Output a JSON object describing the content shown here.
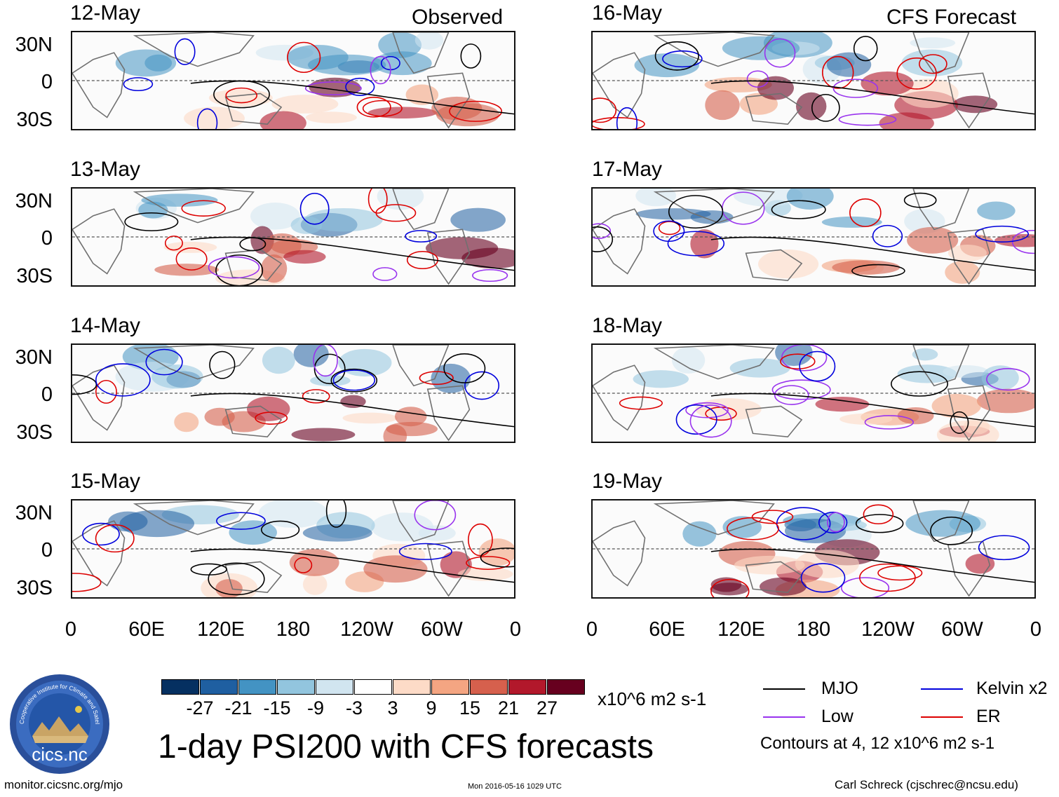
{
  "figure": {
    "title": "1-day PSI200 with CFS forecasts",
    "units": "x10^6 m2 s-1",
    "observed_label": "Observed",
    "forecast_label": "CFS Forecast",
    "contours_note": "Contours at 4, 12 x10^6 m2 s-1",
    "website": "monitor.cicsnc.org/mjo",
    "timestamp": "Mon 2016-05-16 1029 UTC",
    "author": "Carl Schreck (cjschrec@ncsu.edu)"
  },
  "logo": {
    "short_name": "cics.nc",
    "ring_text": "Cooperative Institute for Climate and Satellites"
  },
  "panels": {
    "observed": [
      {
        "date": "12-May"
      },
      {
        "date": "13-May"
      },
      {
        "date": "14-May"
      },
      {
        "date": "15-May"
      }
    ],
    "forecast": [
      {
        "date": "16-May"
      },
      {
        "date": "17-May"
      },
      {
        "date": "18-May"
      },
      {
        "date": "19-May"
      }
    ]
  },
  "axes": {
    "lat_labels": [
      "30N",
      "0",
      "30S"
    ],
    "lon_labels": [
      "0",
      "60E",
      "120E",
      "180",
      "120W",
      "60W",
      "0"
    ]
  },
  "colorbar": {
    "labels": [
      "-27",
      "-21",
      "-15",
      "-9",
      "-3",
      "3",
      "9",
      "15",
      "21",
      "27"
    ],
    "colors": [
      "#053061",
      "#1f5fa1",
      "#4393c3",
      "#92c5de",
      "#d1e5f0",
      "#ffffff",
      "#fddbc7",
      "#f4a582",
      "#d6604d",
      "#b2182b",
      "#67001f"
    ]
  },
  "legend": [
    {
      "label": "MJO",
      "color": "#000000"
    },
    {
      "label": "Kelvin x2",
      "color": "#0000dd"
    },
    {
      "label": "Low",
      "color": "#9933ee"
    },
    {
      "label": "ER",
      "color": "#dd0000"
    }
  ]
}
